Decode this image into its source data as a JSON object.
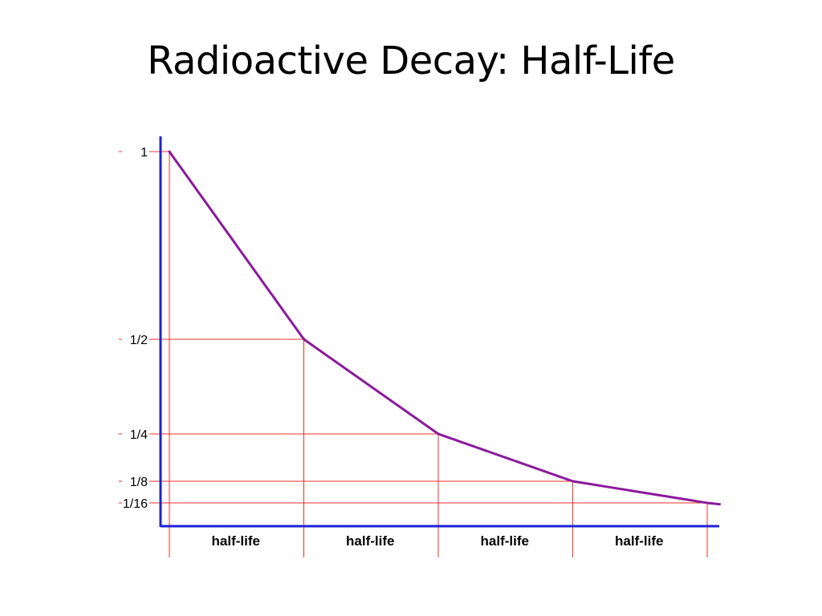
{
  "slide": {
    "title": "Radioactive Decay: Half-Life"
  },
  "chart_data": {
    "type": "line",
    "title": "Radioactive Decay: Half-Life",
    "xlabel": "",
    "ylabel": "",
    "x": [
      0,
      1,
      2,
      3,
      4
    ],
    "series": [
      {
        "values": [
          1,
          0.5,
          0.25,
          0.125,
          0.0625
        ]
      }
    ],
    "y_ticks": [
      {
        "value": 1,
        "label": "1"
      },
      {
        "value": 0.5,
        "label": "1/2"
      },
      {
        "value": 0.25,
        "label": "1/4"
      },
      {
        "value": 0.125,
        "label": "1/8"
      },
      {
        "value": 0.0625,
        "label": "1/16"
      }
    ],
    "x_categories": [
      "half-life",
      "half-life",
      "half-life",
      "half-life"
    ],
    "xlim": [
      0,
      4
    ],
    "ylim": [
      0,
      1
    ],
    "grid": "guide lines at each half-life",
    "colors": {
      "curve": "#8B1A9B",
      "axis": "#1E22D8",
      "guides": "#E8332E"
    }
  }
}
